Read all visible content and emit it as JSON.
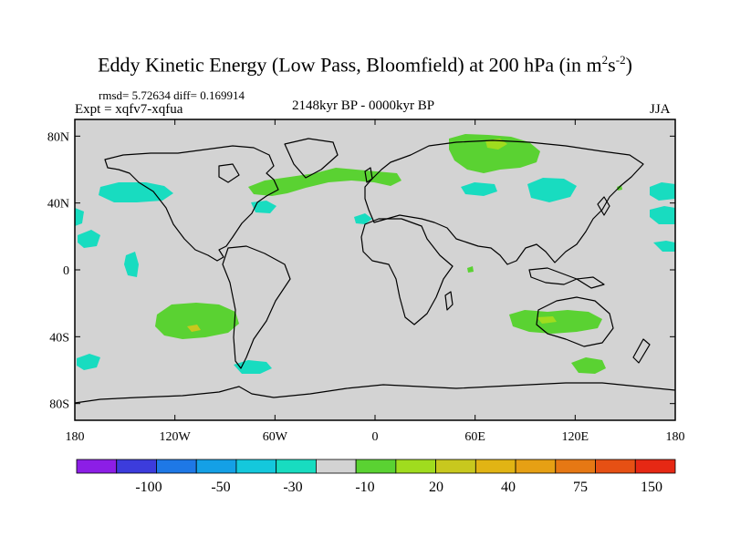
{
  "header": {
    "title": "Eddy Kinetic Energy (Low Pass, Bloomfield) at 200 hPa (in m",
    "title_sup1": "2",
    "title_mid": "s",
    "title_sup2": "-2",
    "title_end": ")",
    "stats": "rmsd= 5.72634 diff= 0.169914",
    "expt": "Expt = xqfv7-xqfua",
    "period": "2148kyr BP - 0000kyr BP",
    "season": "JJA"
  },
  "map": {
    "lat_labels": [
      "80N",
      "40N",
      "0",
      "40S",
      "80S"
    ],
    "lat_values": [
      80,
      40,
      0,
      -40,
      -80
    ],
    "lon_labels": [
      "180",
      "120W",
      "60W",
      "0",
      "60E",
      "120E",
      "180"
    ],
    "lon_values": [
      -180,
      -120,
      -60,
      0,
      60,
      120,
      180
    ],
    "ocean_color": "#d3d3d3",
    "coast_color": "#000000"
  },
  "colorbar": {
    "colors": [
      "#8c1ee6",
      "#3c3cdc",
      "#1e78e6",
      "#14a0e6",
      "#14c8dc",
      "#18dcc0",
      "#d3d3d3",
      "#5ad232",
      "#a0dc1e",
      "#c8c81e",
      "#e1b414",
      "#e6a014",
      "#e67814",
      "#e65014",
      "#e62814"
    ],
    "labels": [
      "-100",
      "-50",
      "-30",
      "-10",
      "20",
      "40",
      "75",
      "150"
    ]
  }
}
